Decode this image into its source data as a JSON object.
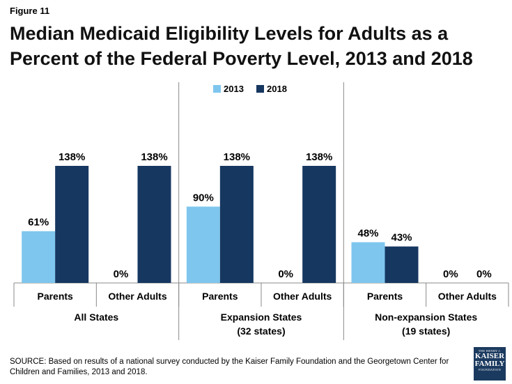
{
  "figure_label": "Figure 11",
  "title": "Median Medicaid Eligibility Levels for Adults as a Percent of the Federal Poverty Level, 2013 and 2018",
  "source": "SOURCE: Based on results of a national survey conducted by the Kaiser Family Foundation and the Georgetown Center for Children and Families, 2013 and 2018.",
  "logo": {
    "line1": "THE HENRY J.",
    "line2": "KAISER",
    "line3": "FAMILY",
    "line4": "FOUNDATION"
  },
  "colors": {
    "2013": "#7fc6ee",
    "2018": "#163760",
    "divider": "#888888"
  },
  "chart_data": {
    "type": "bar",
    "title": "Median Medicaid Eligibility Levels for Adults as a Percent of the Federal Poverty Level, 2013 and 2018",
    "categories": [
      "Parents",
      "Other Adults",
      "Parents",
      "Other Adults",
      "Parents",
      "Other Adults"
    ],
    "groups": [
      {
        "label": "All States",
        "sublabel": "",
        "categories": [
          "Parents",
          "Other Adults"
        ]
      },
      {
        "label": "Expansion States",
        "sublabel": "(32 states)",
        "categories": [
          "Parents",
          "Other Adults"
        ]
      },
      {
        "label": "Non-expansion  States",
        "sublabel": "(19 states)",
        "categories": [
          "Parents",
          "Other Adults"
        ]
      }
    ],
    "series": [
      {
        "name": "2013",
        "values": [
          61,
          0,
          90,
          0,
          48,
          0
        ],
        "labels": [
          "61%",
          "0%",
          "90%",
          "0%",
          "48%",
          "0%"
        ]
      },
      {
        "name": "2018",
        "values": [
          138,
          138,
          138,
          138,
          43,
          0
        ],
        "labels": [
          "138%",
          "138%",
          "138%",
          "138%",
          "43%",
          "0%"
        ]
      }
    ],
    "unit": "%",
    "legend_position": "top-center",
    "grid": false,
    "ylim": [
      0,
      138
    ]
  }
}
